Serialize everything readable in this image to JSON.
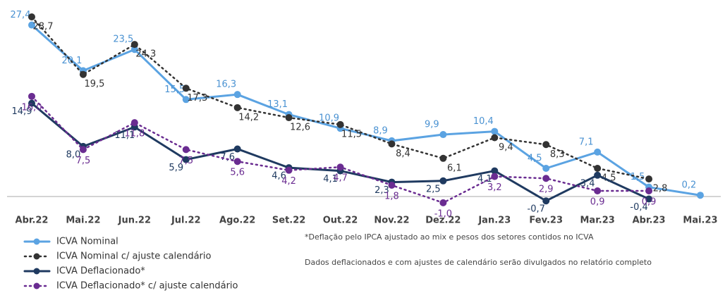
{
  "chart_data": {
    "type": "line",
    "categories": [
      "Abr.22",
      "Mai.22",
      "Jun.22",
      "Jul.22",
      "Ago.22",
      "Set.22",
      "Out.22",
      "Nov.22",
      "Dez.22",
      "Jan.23",
      "Fev.23",
      "Mar.23",
      "Abr.23",
      "Mai.23"
    ],
    "series": [
      {
        "name": "ICVA Nominal",
        "color": "#5ba3e2",
        "dash": false,
        "values": [
          27.4,
          20.1,
          23.5,
          15.5,
          16.3,
          13.1,
          10.9,
          8.9,
          9.9,
          10.4,
          4.5,
          7.1,
          1.5,
          0.2
        ],
        "value_labels": [
          "27,4",
          "20,1",
          "23,5",
          "15,5",
          "16,3",
          "13,1",
          "10,9",
          "8,9",
          "9,9",
          "10,4",
          "4,5",
          "7,1",
          "1,5",
          "0,2"
        ]
      },
      {
        "name": "ICVA Nominal c/ ajuste calendário",
        "color": "#333333",
        "dash": true,
        "values": [
          28.7,
          19.5,
          24.3,
          17.3,
          14.2,
          12.6,
          11.5,
          8.4,
          6.1,
          9.4,
          8.3,
          4.5,
          2.8,
          null
        ],
        "value_labels": [
          "28,7",
          "19,5",
          "24,3",
          "17,3",
          "14,2",
          "12,6",
          "11,5",
          "8,4",
          "6,1",
          "9,4",
          "8,3",
          "4,5",
          "2,8",
          null
        ]
      },
      {
        "name": "ICVA Deflacionado*",
        "color": "#1f3a60",
        "dash": false,
        "values": [
          14.9,
          8.0,
          11.1,
          5.9,
          7.6,
          4.6,
          4.1,
          2.3,
          2.5,
          4.1,
          -0.7,
          3.4,
          -0.4,
          null
        ],
        "value_labels": [
          "14,9",
          "8,0",
          "11,1",
          "5,9",
          "7,6",
          "4,6",
          "4,1",
          "2,3",
          "2,5",
          "4,1",
          "-0,7",
          "3,4",
          "-0,4",
          null
        ]
      },
      {
        "name": "ICVA Deflacionado* c/ ajuste calendário",
        "color": "#6a2c91",
        "dash": true,
        "values": [
          16.0,
          7.5,
          11.8,
          7.5,
          5.6,
          4.2,
          4.7,
          1.8,
          -1.0,
          3.2,
          2.9,
          0.9,
          0.9,
          null
        ],
        "value_labels": [
          "16,0",
          "7,5",
          "11,8",
          "7,5",
          "5,6",
          "4,2",
          "4,7",
          "1,8",
          "-1,0",
          "3,2",
          "2,9",
          "0,9",
          "0,9",
          null
        ]
      }
    ],
    "notes": [
      "*Deflação pelo IPCA ajustado ao mix e pesos dos setores contidos no ICVA",
      "Dados deflacionados e com ajustes de calendário serão divulgados no relatório completo"
    ]
  }
}
